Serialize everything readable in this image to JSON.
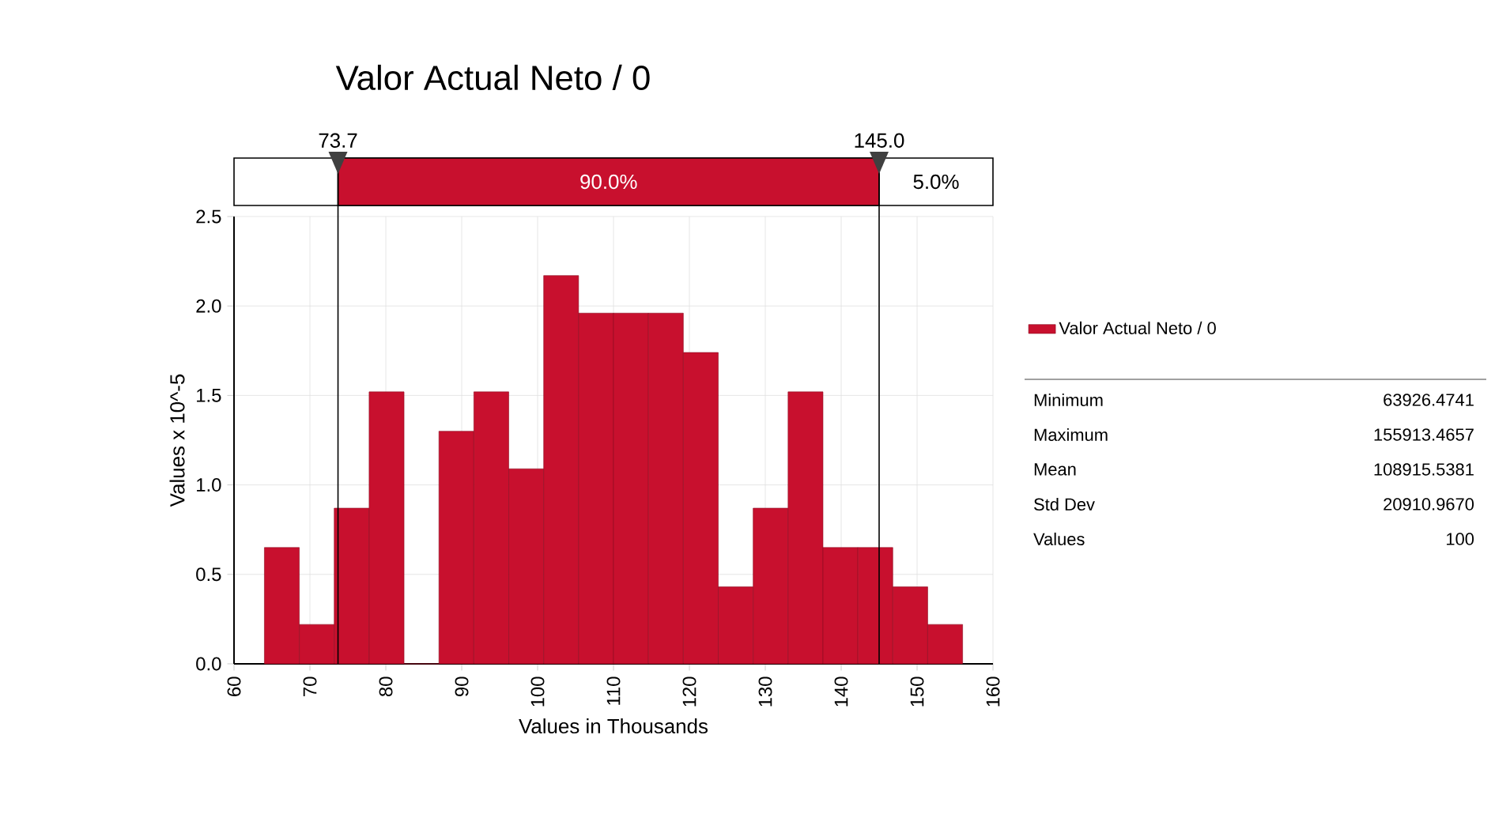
{
  "chart_data": {
    "type": "histogram",
    "title": "Valor Actual Neto / 0",
    "xlabel": "Values in Thousands",
    "ylabel": "Values x 10^-5",
    "bins": [
      64,
      68.6,
      73.2,
      77.8,
      82.4,
      87,
      91.6,
      96.2,
      100.8,
      105.4,
      110,
      114.6,
      119.2,
      123.8,
      128.4,
      133,
      137.6,
      142.2,
      146.8,
      151.4,
      156
    ],
    "series": [
      {
        "name": "Valor Actual Neto / 0",
        "color": "#c8102e",
        "values": [
          0.65,
          0.22,
          0.87,
          1.52,
          0,
          1.3,
          1.52,
          1.09,
          2.17,
          1.96,
          1.96,
          1.96,
          1.74,
          0.43,
          0.87,
          1.52,
          0.65,
          0.65,
          0.43,
          0.22
        ]
      }
    ],
    "xlim": [
      60,
      160
    ],
    "xticks": [
      60,
      70,
      80,
      90,
      100,
      110,
      120,
      130,
      140,
      150,
      160
    ],
    "ylim": [
      0,
      2.5
    ],
    "yticks": [
      {
        "value": 0,
        "label": "0.0"
      },
      {
        "value": 0.5,
        "label": "0.5"
      },
      {
        "value": 1,
        "label": "1.0"
      },
      {
        "value": 1.5,
        "label": "1.5"
      },
      {
        "value": 2,
        "label": "2.0"
      },
      {
        "value": 2.5,
        "label": "2.5"
      }
    ],
    "ref_lines": [
      {
        "axis": "x",
        "value": 73.7,
        "label": "73.7"
      },
      {
        "axis": "x",
        "value": 145.0,
        "label": "145.0"
      }
    ],
    "grid": true,
    "legend": "right",
    "annotations": [
      "90.0%",
      "5.0%",
      "Minimum",
      "63926.4741",
      "Maximum",
      "155913.4657",
      "Mean",
      "108915.5381",
      "Std Dev",
      "20910.9670",
      "Values",
      "100"
    ]
  }
}
